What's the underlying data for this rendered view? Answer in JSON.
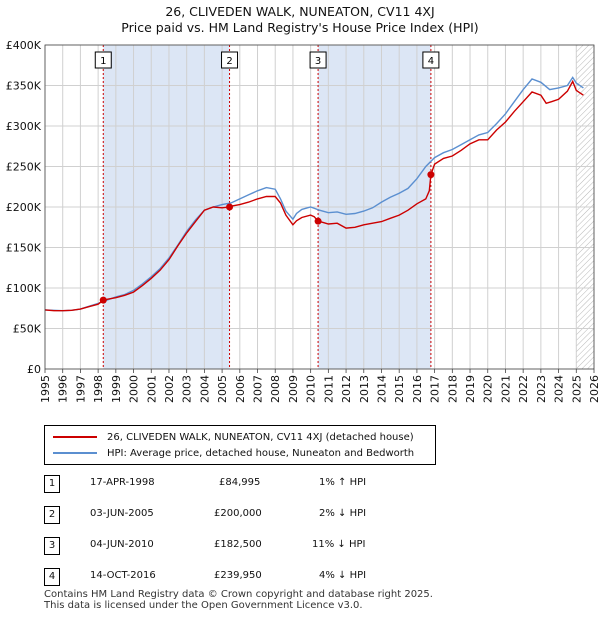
{
  "title_line1": "26, CLIVEDEN WALK, NUNEATON, CV11 4XJ",
  "title_line2": "Price paid vs. HM Land Registry's House Price Index (HPI)",
  "colors": {
    "price": "#cc0000",
    "hpi": "#5b8fd0",
    "shade": "#dce6f5",
    "grid": "#d0d0d0",
    "marker_line": "#cc0000"
  },
  "chart_data": {
    "type": "line",
    "title": "Price paid vs. HM Land Registry's House Price Index (HPI)",
    "xlim": [
      1995,
      2026
    ],
    "ylim": [
      0,
      400000
    ],
    "x_ticks": [
      "1995",
      "1996",
      "1997",
      "1998",
      "1999",
      "2000",
      "2001",
      "2002",
      "2003",
      "2004",
      "2005",
      "2006",
      "2007",
      "2008",
      "2009",
      "2010",
      "2011",
      "2012",
      "2013",
      "2014",
      "2015",
      "2016",
      "2017",
      "2018",
      "2019",
      "2020",
      "2021",
      "2022",
      "2023",
      "2024",
      "2025",
      "2026"
    ],
    "y_ticks": [
      {
        "value": 0,
        "label": "£0"
      },
      {
        "value": 50000,
        "label": "£50K"
      },
      {
        "value": 100000,
        "label": "£100K"
      },
      {
        "value": 150000,
        "label": "£150K"
      },
      {
        "value": 200000,
        "label": "£200K"
      },
      {
        "value": 250000,
        "label": "£250K"
      },
      {
        "value": 300000,
        "label": "£300K"
      },
      {
        "value": 350000,
        "label": "£350K"
      },
      {
        "value": 400000,
        "label": "£400K"
      }
    ],
    "shaded_ranges": [
      [
        1998.29,
        2005.42
      ],
      [
        2010.42,
        2016.79
      ]
    ],
    "future_hatch_from": 2025.0,
    "series": [
      {
        "name": "26, CLIVEDEN WALK, NUNEATON, CV11 4XJ (detached house)",
        "x": [
          1995,
          1995.5,
          1996,
          1996.5,
          1997,
          1997.5,
          1998,
          1998.29,
          1998.5,
          1999,
          1999.5,
          2000,
          2000.5,
          2001,
          2001.5,
          2002,
          2002.5,
          2003,
          2003.5,
          2004,
          2004.5,
          2005,
          2005.42,
          2005.5,
          2006,
          2006.5,
          2007,
          2007.5,
          2008,
          2008.3,
          2008.6,
          2009,
          2009.2,
          2009.5,
          2010,
          2010.2,
          2010.42,
          2010.7,
          2011,
          2011.5,
          2012,
          2012.5,
          2013,
          2013.5,
          2014,
          2014.5,
          2015,
          2015.5,
          2016,
          2016.5,
          2016.7,
          2016.79,
          2017,
          2017.5,
          2018,
          2018.5,
          2019,
          2019.5,
          2020,
          2020.5,
          2021,
          2021.5,
          2022,
          2022.5,
          2023,
          2023.3,
          2023.6,
          2024,
          2024.5,
          2024.8,
          2025,
          2025.4
        ],
        "values": [
          73000,
          72000,
          72000,
          72500,
          74000,
          77000,
          80000,
          84995,
          86000,
          88000,
          91000,
          95000,
          103000,
          112000,
          122000,
          135000,
          152000,
          168000,
          182000,
          196000,
          200000,
          199000,
          200000,
          201000,
          203000,
          206000,
          210000,
          213000,
          213000,
          205000,
          190000,
          178000,
          183000,
          187000,
          190000,
          188000,
          182500,
          181000,
          179000,
          180000,
          174000,
          175000,
          178000,
          180000,
          182000,
          186000,
          190000,
          196000,
          204000,
          210000,
          220000,
          239950,
          253000,
          260000,
          263000,
          270000,
          278000,
          283000,
          283000,
          295000,
          305000,
          318000,
          330000,
          342000,
          338000,
          328000,
          330000,
          333000,
          343000,
          355000,
          344000,
          338000
        ]
      },
      {
        "name": "HPI: Average price, detached house, Nuneaton and Bedworth",
        "x": [
          1995,
          1995.5,
          1996,
          1996.5,
          1997,
          1997.5,
          1998,
          1998.5,
          1999,
          1999.5,
          2000,
          2000.5,
          2001,
          2001.5,
          2002,
          2002.5,
          2003,
          2003.5,
          2004,
          2004.5,
          2005,
          2005.5,
          2006,
          2006.5,
          2007,
          2007.5,
          2008,
          2008.3,
          2008.6,
          2009,
          2009.2,
          2009.5,
          2010,
          2010.5,
          2011,
          2011.5,
          2012,
          2012.5,
          2013,
          2013.5,
          2014,
          2014.5,
          2015,
          2015.5,
          2016,
          2016.5,
          2017,
          2017.5,
          2018,
          2018.5,
          2019,
          2019.5,
          2020,
          2020.5,
          2021,
          2021.5,
          2022,
          2022.5,
          2023,
          2023.5,
          2024,
          2024.5,
          2024.8,
          2025,
          2025.4
        ],
        "values": [
          73000,
          72500,
          72000,
          72500,
          74000,
          77500,
          81000,
          85000,
          89000,
          92000,
          97000,
          105000,
          114000,
          124000,
          137000,
          153000,
          170000,
          184000,
          196000,
          200000,
          203000,
          205000,
          210000,
          215000,
          220000,
          224000,
          222000,
          210000,
          195000,
          185000,
          192000,
          197000,
          200000,
          196000,
          193000,
          194000,
          191000,
          192000,
          195000,
          199000,
          206000,
          212000,
          217000,
          223000,
          235000,
          250000,
          261000,
          267000,
          271000,
          277000,
          283000,
          289000,
          292000,
          303000,
          315000,
          330000,
          345000,
          358000,
          354000,
          345000,
          347000,
          350000,
          360000,
          353000,
          347000
        ]
      }
    ],
    "sales": [
      {
        "label": "1",
        "x": 1998.29,
        "value": 84995
      },
      {
        "label": "2",
        "x": 2005.42,
        "value": 200000
      },
      {
        "label": "3",
        "x": 2010.42,
        "value": 182500
      },
      {
        "label": "4",
        "x": 2016.79,
        "value": 239950
      }
    ]
  },
  "legend": {
    "price_label": "26, CLIVEDEN WALK, NUNEATON, CV11 4XJ (detached house)",
    "hpi_label": "HPI: Average price, detached house, Nuneaton and Bedworth"
  },
  "transactions": [
    {
      "num": "1",
      "date": "17-APR-1998",
      "price": "£84,995",
      "hpi": "1% ↑ HPI"
    },
    {
      "num": "2",
      "date": "03-JUN-2005",
      "price": "£200,000",
      "hpi": "2% ↓ HPI"
    },
    {
      "num": "3",
      "date": "04-JUN-2010",
      "price": "£182,500",
      "hpi": "11% ↓ HPI"
    },
    {
      "num": "4",
      "date": "14-OCT-2016",
      "price": "£239,950",
      "hpi": "4% ↓ HPI"
    }
  ],
  "footer": {
    "line1": "Contains HM Land Registry data © Crown copyright and database right 2025.",
    "line2": "This data is licensed under the Open Government Licence v3.0."
  }
}
